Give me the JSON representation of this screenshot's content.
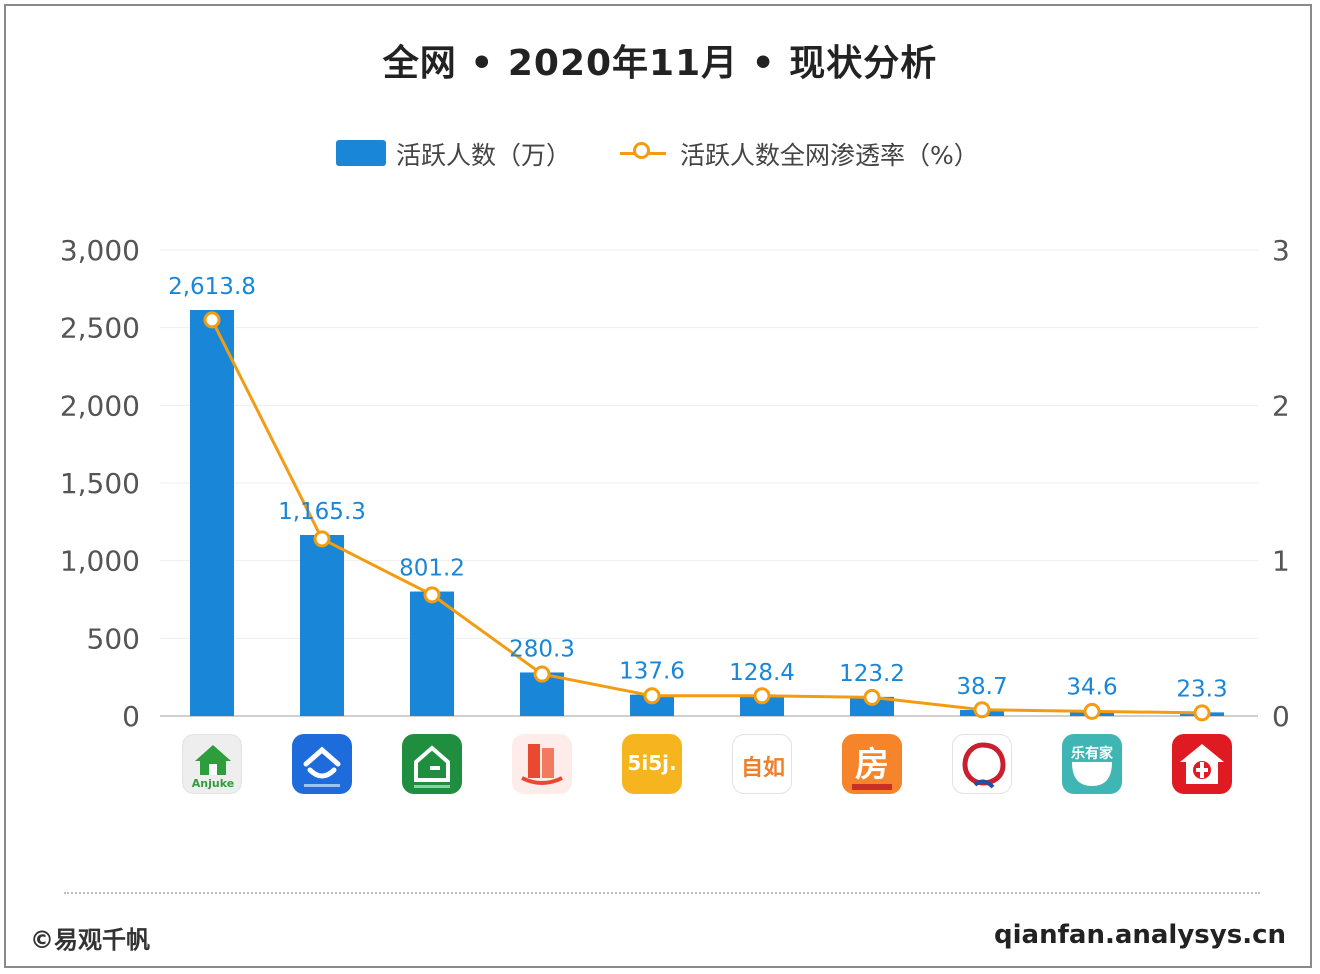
{
  "title": "全网 • 2020年11月 • 现状分析",
  "footer": {
    "left": "©易观千帆",
    "right": "qianfan.analysys.cn"
  },
  "chart_data": {
    "type": "bar",
    "title": "全网 • 2020年11月 • 现状分析",
    "legend_position": "top-center",
    "grid": true,
    "categories": [
      "安居客",
      "贝壳找房",
      "链家",
      "房天下",
      "我爱我家",
      "自如",
      "诸葛找房",
      "Q房网",
      "乐有家",
      "中原找房"
    ],
    "y_left": {
      "range": [
        0,
        3000
      ],
      "ticks": [
        "0",
        "500",
        "1,000",
        "1,500",
        "2,000",
        "2,500",
        "3,000"
      ]
    },
    "y_right": {
      "range": [
        0,
        3
      ],
      "ticks": [
        "0",
        "1",
        "2",
        "3"
      ]
    },
    "series": [
      {
        "name": "活跃人数（万）",
        "type": "bar",
        "axis": "left",
        "color": "#1a86d8",
        "values": [
          2613.8,
          1165.3,
          801.2,
          280.3,
          137.6,
          128.4,
          123.2,
          38.7,
          34.6,
          23.3
        ],
        "labels": [
          "2,613.8",
          "1,165.3",
          "801.2",
          "280.3",
          "137.6",
          "128.4",
          "123.2",
          "38.7",
          "34.6",
          "23.3"
        ]
      },
      {
        "name": "活跃人数全网渗透率（%）",
        "type": "line",
        "axis": "right",
        "color": "#f39c12",
        "values": [
          2.55,
          1.14,
          0.78,
          0.27,
          0.13,
          0.13,
          0.12,
          0.04,
          0.03,
          0.02
        ]
      }
    ]
  },
  "icons": [
    {
      "name": "anjuke-icon",
      "text": "Anjuke",
      "bg": "#eeeeee",
      "fg": "#2e9e3c"
    },
    {
      "name": "beike-icon",
      "text": "",
      "bg": "#1e6bdc",
      "fg": "#ffffff"
    },
    {
      "name": "lianjia-icon",
      "text": "",
      "bg": "#1f8f3f",
      "fg": "#ffffff"
    },
    {
      "name": "fangtianxia-icon",
      "text": "",
      "bg": "#fdecea",
      "fg": "#e8492f"
    },
    {
      "name": "5i5j-icon",
      "text": "5i5j.",
      "bg": "#f6b51e",
      "fg": "#ffffff"
    },
    {
      "name": "ziroom-icon",
      "text": "自如",
      "bg": "#ffffff",
      "fg": "#f07f2a"
    },
    {
      "name": "zhuge-icon",
      "text": "房",
      "bg": "#f5842a",
      "fg": "#ffffff"
    },
    {
      "name": "qfang-icon",
      "text": "",
      "bg": "#ffffff",
      "fg": "#c8202f"
    },
    {
      "name": "leyoujia-icon",
      "text": "乐有家",
      "bg": "#3fb6b3",
      "fg": "#ffffff"
    },
    {
      "name": "centaline-icon",
      "text": "",
      "bg": "#e01a22",
      "fg": "#ffffff"
    }
  ]
}
